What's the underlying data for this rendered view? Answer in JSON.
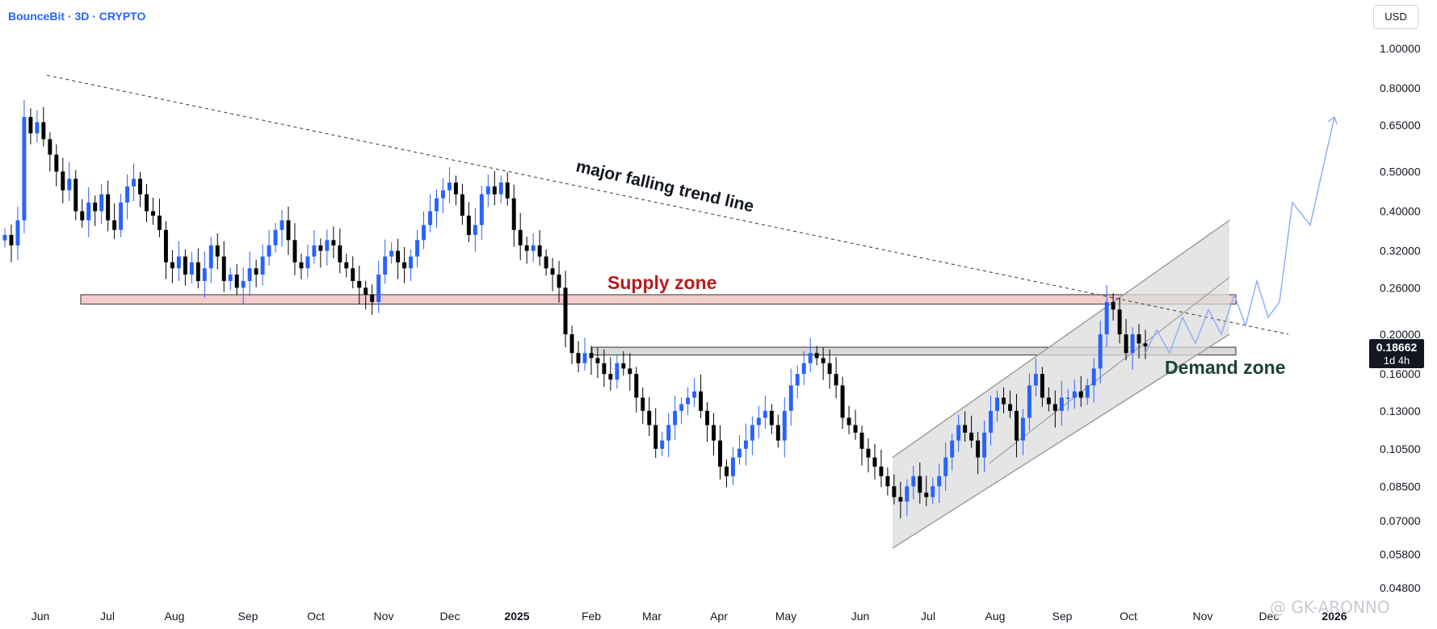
{
  "header": {
    "title": "BounceBit · 3D · CRYPTO"
  },
  "currency_button": "USD",
  "price_badge": {
    "price": "0.18662",
    "countdown": "1d 4h"
  },
  "watermark": "@ GK-ARONNO",
  "colors": {
    "up": "#2962ff",
    "down": "#000000",
    "supply": "#f4cccc",
    "demand": "#d9d9d9",
    "channel": "#dcdcdc",
    "projection": "#8fb0f5"
  },
  "chart_data": {
    "type": "candlestick",
    "title": "BounceBit · 3D · CRYPTO",
    "y_scale": "log",
    "y_ticks": [
      "1.00000",
      "0.80000",
      "0.65000",
      "0.50000",
      "0.40000",
      "0.32000",
      "0.26000",
      "0.20000",
      "0.16000",
      "0.13000",
      "0.10500",
      "0.08500",
      "0.07000",
      "0.05800",
      "0.04800"
    ],
    "x_ticks": [
      "Jun",
      "Jul",
      "Aug",
      "Sep",
      "Oct",
      "Nov",
      "Dec",
      "2025",
      "Feb",
      "Mar",
      "Apr",
      "May",
      "Jun",
      "Jul",
      "Aug",
      "Sep",
      "Oct",
      "Nov",
      "Dec",
      "2026"
    ],
    "annotations": {
      "trend_line_label": "major falling trend line",
      "supply_label": "Supply zone",
      "demand_label": "Demand zone",
      "supply_zone": [
        0.237,
        0.25
      ],
      "demand_zone": [
        0.178,
        0.186
      ],
      "trend_line": {
        "start_price": 0.86,
        "end_price": 0.2
      },
      "channel": {
        "start_low": 0.06,
        "start_high": 0.1,
        "end_low": 0.2,
        "end_high": 0.38
      },
      "projection": [
        0.18,
        0.205,
        0.18,
        0.22,
        0.19,
        0.23,
        0.2,
        0.25,
        0.21,
        0.27,
        0.22,
        0.24,
        0.42,
        0.37,
        0.68
      ]
    },
    "closes": [
      0.35,
      0.33,
      0.38,
      0.68,
      0.62,
      0.66,
      0.6,
      0.55,
      0.5,
      0.45,
      0.48,
      0.4,
      0.38,
      0.42,
      0.4,
      0.44,
      0.38,
      0.36,
      0.42,
      0.46,
      0.48,
      0.44,
      0.4,
      0.39,
      0.36,
      0.3,
      0.29,
      0.31,
      0.28,
      0.3,
      0.27,
      0.29,
      0.33,
      0.31,
      0.27,
      0.28,
      0.26,
      0.27,
      0.29,
      0.28,
      0.31,
      0.33,
      0.36,
      0.38,
      0.34,
      0.3,
      0.29,
      0.31,
      0.33,
      0.32,
      0.34,
      0.33,
      0.3,
      0.29,
      0.27,
      0.26,
      0.25,
      0.24,
      0.28,
      0.31,
      0.32,
      0.3,
      0.29,
      0.31,
      0.34,
      0.37,
      0.4,
      0.43,
      0.45,
      0.47,
      0.44,
      0.39,
      0.35,
      0.37,
      0.44,
      0.46,
      0.44,
      0.47,
      0.43,
      0.36,
      0.33,
      0.32,
      0.33,
      0.31,
      0.29,
      0.28,
      0.26,
      0.2,
      0.18,
      0.17,
      0.18,
      0.175,
      0.17,
      0.16,
      0.155,
      0.17,
      0.165,
      0.16,
      0.14,
      0.13,
      0.12,
      0.105,
      0.11,
      0.12,
      0.13,
      0.135,
      0.14,
      0.145,
      0.13,
      0.12,
      0.11,
      0.095,
      0.09,
      0.1,
      0.105,
      0.11,
      0.12,
      0.125,
      0.13,
      0.12,
      0.11,
      0.13,
      0.15,
      0.16,
      0.17,
      0.18,
      0.175,
      0.17,
      0.16,
      0.15,
      0.125,
      0.12,
      0.115,
      0.105,
      0.1,
      0.095,
      0.09,
      0.085,
      0.08,
      0.078,
      0.085,
      0.09,
      0.082,
      0.08,
      0.085,
      0.09,
      0.1,
      0.11,
      0.12,
      0.115,
      0.11,
      0.1,
      0.115,
      0.13,
      0.14,
      0.135,
      0.13,
      0.11,
      0.125,
      0.15,
      0.16,
      0.14,
      0.135,
      0.13,
      0.14,
      0.14,
      0.145,
      0.14,
      0.15,
      0.165,
      0.2,
      0.24,
      0.23,
      0.2,
      0.18,
      0.2,
      0.19,
      0.187
    ]
  }
}
